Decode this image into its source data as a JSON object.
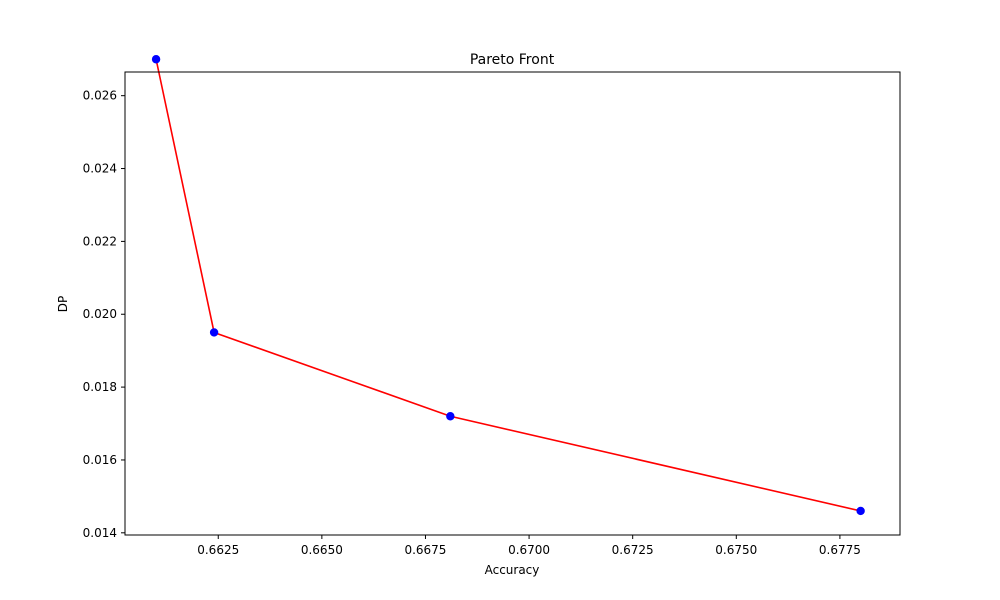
{
  "chart_data": {
    "type": "scatter",
    "title": "Pareto Front",
    "xlabel": "Accuracy",
    "ylabel": "DP",
    "xlim": [
      0.66025,
      0.67895
    ],
    "ylim": [
      0.01394,
      0.02665
    ],
    "xticks": [
      0.6625,
      0.665,
      0.6675,
      0.67,
      0.6725,
      0.675,
      0.6775
    ],
    "xtick_labels": [
      "0.6625",
      "0.6650",
      "0.6675",
      "0.6700",
      "0.6725",
      "0.6750",
      "0.6775"
    ],
    "yticks": [
      0.014,
      0.016,
      0.018,
      0.02,
      0.022,
      0.024,
      0.026
    ],
    "ytick_labels": [
      "0.014",
      "0.016",
      "0.018",
      "0.020",
      "0.022",
      "0.024",
      "0.026"
    ],
    "grid": false,
    "legend": "none",
    "series": [
      {
        "x": [
          0.661,
          0.6624,
          0.6681,
          0.678
        ],
        "y": [
          0.027,
          0.0195,
          0.0172,
          0.0146
        ],
        "marker_color": "#0000ff",
        "line_color": "#ff0000"
      }
    ]
  }
}
